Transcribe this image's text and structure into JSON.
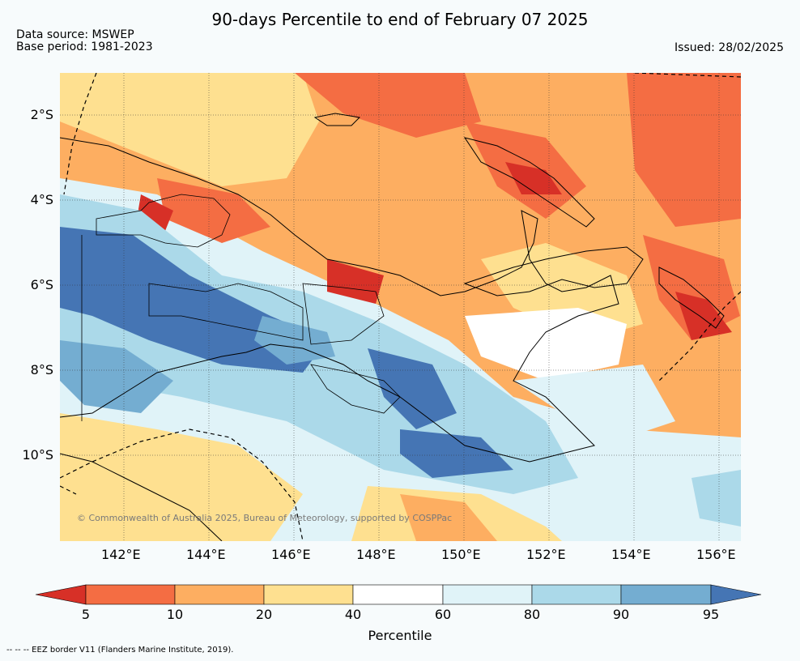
{
  "title": "90-days Percentile to end of February 07 2025",
  "source_line1": "Data source: MSWEP",
  "source_line2": "Base period: 1981-2023",
  "issued": "Issued: 28/02/2025",
  "credit": "© Commonwealth of Australia 2025, Bureau of Meteorology, supported by COSPPac",
  "y_axis_labels": [
    "2°S",
    "4°S",
    "6°S",
    "8°S",
    "10°S"
  ],
  "x_axis_labels": [
    "142°E",
    "144°E",
    "146°E",
    "148°E",
    "150°E",
    "152°E",
    "154°E",
    "156°E"
  ],
  "legend": {
    "title": "Percentile",
    "tick_labels": [
      "5",
      "10",
      "20",
      "40",
      "60",
      "80",
      "90",
      "95"
    ],
    "bin_colors": [
      "#d73027",
      "#f46d43",
      "#fdae61",
      "#fee090",
      "#ffffff",
      "#e0f3f8",
      "#abd9e9",
      "#74add1",
      "#4575b4"
    ]
  },
  "footnote": "--  --  -- EEZ border V11 (Flanders Marine Institute, 2019)."
}
